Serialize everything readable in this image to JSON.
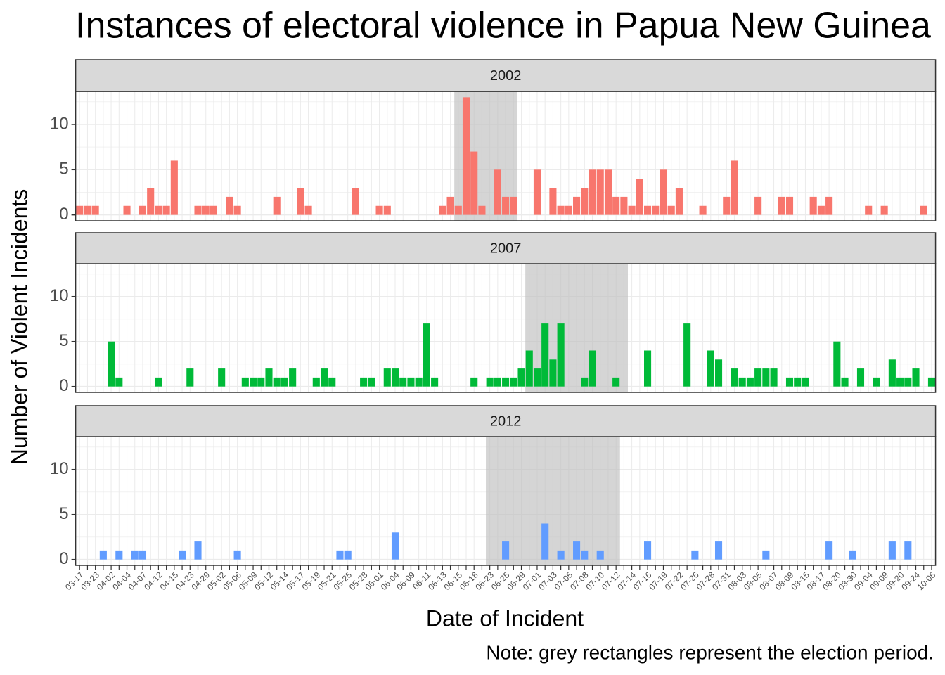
{
  "chart_data": {
    "type": "bar",
    "title": "Instances of electoral violence in Papua New Guinea",
    "xlabel": "Date of Incident",
    "ylabel": "Number of Violent Incidents",
    "note": "Note: grey rectangles represent the election period.",
    "categories": [
      "03-17",
      null,
      "03-23",
      null,
      "04-02",
      null,
      "04-04",
      null,
      "04-07",
      null,
      "04-12",
      null,
      "04-15",
      null,
      "04-23",
      null,
      "04-29",
      null,
      "05-02",
      null,
      "05-06",
      null,
      "05-09",
      null,
      "05-12",
      null,
      "05-14",
      null,
      "05-17",
      null,
      "05-19",
      null,
      "05-21",
      null,
      "05-25",
      null,
      "05-28",
      null,
      "06-01",
      null,
      "06-04",
      null,
      "06-09",
      null,
      "06-11",
      null,
      "06-13",
      null,
      "06-15",
      null,
      "06-18",
      null,
      "06-23",
      null,
      "06-25",
      null,
      "06-29",
      null,
      "07-01",
      null,
      "07-03",
      null,
      "07-05",
      null,
      "07-08",
      null,
      "07-10",
      null,
      "07-12",
      null,
      "07-14",
      null,
      "07-16",
      null,
      "07-19",
      null,
      "07-22",
      null,
      "07-26",
      null,
      "07-28",
      null,
      "07-31",
      null,
      "08-03",
      null,
      "08-05",
      null,
      "08-07",
      null,
      "08-09",
      null,
      "08-15",
      null,
      "08-17",
      null,
      "08-20",
      null,
      "08-30",
      null,
      "09-04",
      null,
      "09-09",
      null,
      "09-20",
      null,
      "09-24",
      null,
      "10-05"
    ],
    "ylim": [
      -0.65,
      13.65
    ],
    "yticks": [
      0,
      5,
      10
    ],
    "minor_yticks": [
      2.5,
      7.5,
      12.5
    ],
    "grid": true,
    "series": [
      {
        "name": "2002",
        "color": "#F8766D",
        "election": [
          48,
          55
        ],
        "values": [
          1,
          1,
          1,
          null,
          null,
          null,
          1,
          null,
          1,
          3,
          1,
          1,
          6,
          null,
          null,
          1,
          1,
          1,
          null,
          2,
          1,
          null,
          null,
          null,
          null,
          2,
          null,
          null,
          3,
          1,
          null,
          null,
          null,
          null,
          null,
          3,
          null,
          null,
          1,
          1,
          null,
          null,
          null,
          null,
          null,
          null,
          1,
          2,
          1,
          13,
          7,
          1,
          null,
          5,
          2,
          2,
          null,
          null,
          5,
          null,
          3,
          1,
          1,
          2,
          3,
          5,
          5,
          5,
          2,
          2,
          1,
          4,
          1,
          1,
          5,
          1,
          3,
          null,
          null,
          1,
          null,
          null,
          2,
          6,
          null,
          null,
          2,
          null,
          null,
          2,
          2,
          null,
          null,
          2,
          1,
          2,
          null,
          null,
          null,
          null,
          1,
          null,
          1,
          null,
          null,
          null,
          null,
          1,
          null
        ]
      },
      {
        "name": "2007",
        "color": "#00BA38",
        "election": [
          57,
          69
        ],
        "values": [
          null,
          null,
          null,
          null,
          5,
          1,
          null,
          null,
          null,
          null,
          1,
          null,
          null,
          null,
          2,
          null,
          null,
          null,
          2,
          null,
          null,
          1,
          1,
          1,
          2,
          1,
          1,
          2,
          null,
          null,
          1,
          2,
          1,
          null,
          null,
          null,
          1,
          1,
          null,
          2,
          2,
          1,
          1,
          1,
          7,
          1,
          null,
          null,
          null,
          null,
          1,
          null,
          1,
          1,
          1,
          1,
          2,
          4,
          2,
          7,
          3,
          7,
          null,
          null,
          1,
          4,
          null,
          null,
          1,
          null,
          null,
          null,
          4,
          null,
          null,
          null,
          null,
          7,
          null,
          null,
          4,
          3,
          null,
          2,
          1,
          1,
          2,
          2,
          2,
          null,
          1,
          1,
          1,
          null,
          null,
          null,
          5,
          1,
          null,
          2,
          null,
          1,
          null,
          3,
          1,
          1,
          2,
          null,
          1
        ]
      },
      {
        "name": "2012",
        "color": "#619CFF",
        "election": [
          52,
          68
        ],
        "values": [
          null,
          null,
          null,
          1,
          null,
          1,
          null,
          1,
          1,
          null,
          null,
          null,
          null,
          1,
          null,
          2,
          null,
          null,
          null,
          null,
          1,
          null,
          null,
          null,
          null,
          null,
          null,
          null,
          null,
          null,
          null,
          null,
          null,
          1,
          1,
          null,
          null,
          null,
          null,
          null,
          3,
          null,
          null,
          null,
          null,
          null,
          null,
          null,
          null,
          null,
          null,
          null,
          null,
          null,
          2,
          null,
          null,
          null,
          null,
          4,
          null,
          1,
          null,
          2,
          1,
          null,
          1,
          null,
          null,
          null,
          null,
          null,
          2,
          null,
          null,
          null,
          null,
          null,
          1,
          null,
          null,
          2,
          null,
          null,
          null,
          null,
          null,
          1,
          null,
          null,
          null,
          null,
          null,
          null,
          null,
          2,
          null,
          null,
          1,
          null,
          null,
          null,
          null,
          2,
          null,
          2,
          null,
          null,
          null
        ]
      }
    ]
  }
}
